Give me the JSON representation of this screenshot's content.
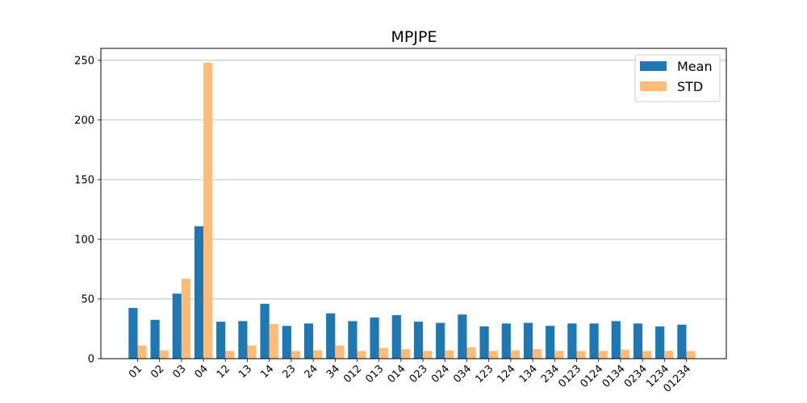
{
  "chart_data": {
    "type": "bar",
    "title": "MPJPE",
    "xlabel": "",
    "ylabel": "",
    "ylim": [
      0,
      260
    ],
    "yticks": [
      0,
      50,
      100,
      150,
      200,
      250
    ],
    "grid": "y",
    "legend_position": "top-right",
    "categories": [
      "01",
      "02",
      "03",
      "04",
      "12",
      "13",
      "14",
      "23",
      "24",
      "34",
      "012",
      "013",
      "014",
      "023",
      "024",
      "034",
      "123",
      "124",
      "134",
      "234",
      "0123",
      "0124",
      "0134",
      "0234",
      "1234",
      "01234"
    ],
    "series": [
      {
        "name": "Mean",
        "color": "#1f77b4",
        "values": [
          42.5,
          32.5,
          54.5,
          111,
          31,
          31.5,
          46,
          27.5,
          29.5,
          38,
          31.5,
          34.5,
          36.5,
          31,
          30,
          37,
          27,
          29.5,
          30,
          27.5,
          29.5,
          29.5,
          31.5,
          29.5,
          27,
          28.5
        ]
      },
      {
        "name": "STD",
        "color": "#ffbb78",
        "values": [
          11,
          7,
          67,
          248,
          6.5,
          11,
          29,
          6.5,
          7,
          11,
          6.5,
          9,
          8,
          6.5,
          7,
          9.5,
          6.5,
          7,
          8,
          6.5,
          6.5,
          6.5,
          7.5,
          6.5,
          6.5,
          6.5
        ]
      }
    ]
  }
}
